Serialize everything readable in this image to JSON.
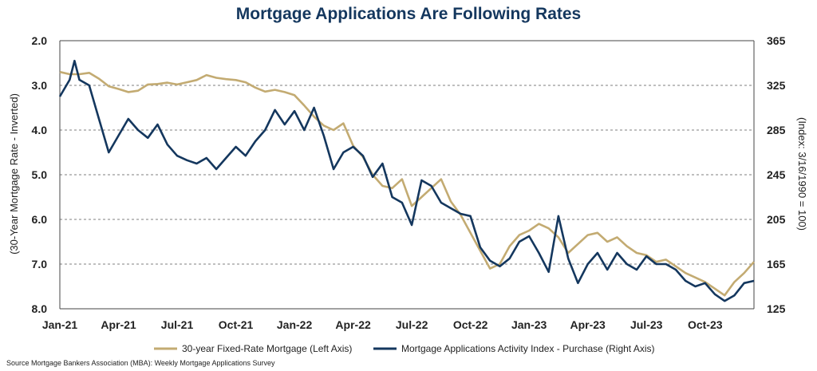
{
  "title": "Mortgage Applications Are Following Rates",
  "source": "Source Mortgage Bankers Association (MBA): Weekly Mortgage Applications Survey",
  "chart_data": {
    "type": "line",
    "title": "Mortgage Applications Are Following Rates",
    "x_tick_labels": [
      "Jan-21",
      "Apr-21",
      "Jul-21",
      "Oct-21",
      "Jan-22",
      "Apr-22",
      "Jul-22",
      "Oct-22",
      "Jan-23",
      "Apr-23",
      "Jul-23",
      "Oct-23"
    ],
    "x_tick_months": [
      0,
      3,
      6,
      9,
      12,
      15,
      18,
      21,
      24,
      27,
      30,
      33
    ],
    "x_range_months": [
      0,
      35.5
    ],
    "left_axis": {
      "label": "(30-Year Mortgage Rate - Inverted)",
      "range": [
        2.0,
        8.0
      ],
      "inverted": true,
      "ticks": [
        "2.0",
        "3.0",
        "4.0",
        "5.0",
        "6.0",
        "7.0",
        "8.0"
      ]
    },
    "right_axis": {
      "label": "(Index: 3/16/1990 = 100)",
      "range": [
        125,
        365
      ],
      "ticks": [
        "125",
        "165",
        "205",
        "245",
        "285",
        "325",
        "365"
      ]
    },
    "grid": "horizontal dashed",
    "legend_position": "bottom",
    "series": [
      {
        "name": "30-year Fixed-Rate Mortgage (Left Axis)",
        "axis": "left",
        "color": "#c3ab72",
        "points": [
          [
            0,
            2.7
          ],
          [
            0.5,
            2.75
          ],
          [
            1,
            2.75
          ],
          [
            1.5,
            2.72
          ],
          [
            2,
            2.85
          ],
          [
            2.5,
            3.02
          ],
          [
            3,
            3.08
          ],
          [
            3.5,
            3.15
          ],
          [
            4,
            3.12
          ],
          [
            4.5,
            2.98
          ],
          [
            5,
            2.97
          ],
          [
            5.5,
            2.94
          ],
          [
            6,
            2.98
          ],
          [
            6.5,
            2.93
          ],
          [
            7,
            2.88
          ],
          [
            7.5,
            2.77
          ],
          [
            8,
            2.83
          ],
          [
            8.5,
            2.86
          ],
          [
            9,
            2.88
          ],
          [
            9.5,
            2.93
          ],
          [
            10,
            3.05
          ],
          [
            10.5,
            3.14
          ],
          [
            11,
            3.1
          ],
          [
            11.5,
            3.15
          ],
          [
            12,
            3.22
          ],
          [
            12.5,
            3.45
          ],
          [
            13,
            3.7
          ],
          [
            13.5,
            3.9
          ],
          [
            14,
            4.0
          ],
          [
            14.5,
            3.85
          ],
          [
            15,
            4.35
          ],
          [
            15.5,
            4.6
          ],
          [
            16,
            5.0
          ],
          [
            16.5,
            5.25
          ],
          [
            17,
            5.3
          ],
          [
            17.5,
            5.1
          ],
          [
            18,
            5.7
          ],
          [
            18.5,
            5.5
          ],
          [
            19,
            5.3
          ],
          [
            19.5,
            5.1
          ],
          [
            20,
            5.6
          ],
          [
            20.5,
            5.9
          ],
          [
            21,
            6.3
          ],
          [
            21.5,
            6.7
          ],
          [
            22,
            7.1
          ],
          [
            22.5,
            7.0
          ],
          [
            23,
            6.6
          ],
          [
            23.5,
            6.35
          ],
          [
            24,
            6.25
          ],
          [
            24.5,
            6.1
          ],
          [
            25,
            6.2
          ],
          [
            25.5,
            6.4
          ],
          [
            26,
            6.75
          ],
          [
            26.5,
            6.55
          ],
          [
            27,
            6.35
          ],
          [
            27.5,
            6.3
          ],
          [
            28,
            6.5
          ],
          [
            28.5,
            6.4
          ],
          [
            29,
            6.6
          ],
          [
            29.5,
            6.75
          ],
          [
            30,
            6.8
          ],
          [
            30.5,
            6.95
          ],
          [
            31,
            6.9
          ],
          [
            31.5,
            7.05
          ],
          [
            32,
            7.2
          ],
          [
            32.5,
            7.3
          ],
          [
            33,
            7.4
          ],
          [
            33.5,
            7.55
          ],
          [
            34,
            7.7
          ],
          [
            34.5,
            7.4
          ],
          [
            35,
            7.2
          ],
          [
            35.5,
            6.95
          ]
        ]
      },
      {
        "name": "Mortgage Applications Activity Index - Purchase (Right Axis)",
        "axis": "right",
        "color": "#14375e",
        "points": [
          [
            0,
            315
          ],
          [
            0.5,
            330
          ],
          [
            0.75,
            347
          ],
          [
            1,
            330
          ],
          [
            1.5,
            325
          ],
          [
            2,
            295
          ],
          [
            2.5,
            265
          ],
          [
            3,
            280
          ],
          [
            3.5,
            295
          ],
          [
            4,
            285
          ],
          [
            4.5,
            278
          ],
          [
            5,
            290
          ],
          [
            5.5,
            272
          ],
          [
            6,
            262
          ],
          [
            6.5,
            258
          ],
          [
            7,
            255
          ],
          [
            7.5,
            260
          ],
          [
            8,
            250
          ],
          [
            8.5,
            260
          ],
          [
            9,
            270
          ],
          [
            9.5,
            262
          ],
          [
            10,
            275
          ],
          [
            10.5,
            285
          ],
          [
            11,
            303
          ],
          [
            11.5,
            290
          ],
          [
            12,
            302
          ],
          [
            12.5,
            285
          ],
          [
            13,
            305
          ],
          [
            13.5,
            280
          ],
          [
            14,
            250
          ],
          [
            14.5,
            265
          ],
          [
            15,
            270
          ],
          [
            15.5,
            262
          ],
          [
            16,
            243
          ],
          [
            16.5,
            255
          ],
          [
            17,
            225
          ],
          [
            17.5,
            220
          ],
          [
            18,
            200
          ],
          [
            18.5,
            240
          ],
          [
            19,
            235
          ],
          [
            19.5,
            220
          ],
          [
            20,
            215
          ],
          [
            20.5,
            210
          ],
          [
            21,
            208
          ],
          [
            21.5,
            180
          ],
          [
            22,
            168
          ],
          [
            22.5,
            163
          ],
          [
            23,
            170
          ],
          [
            23.5,
            185
          ],
          [
            24,
            190
          ],
          [
            24.5,
            175
          ],
          [
            25,
            158
          ],
          [
            25.5,
            208
          ],
          [
            26,
            170
          ],
          [
            26.5,
            148
          ],
          [
            27,
            165
          ],
          [
            27.5,
            175
          ],
          [
            28,
            160
          ],
          [
            28.5,
            175
          ],
          [
            29,
            165
          ],
          [
            29.5,
            160
          ],
          [
            30,
            172
          ],
          [
            30.5,
            165
          ],
          [
            31,
            165
          ],
          [
            31.5,
            160
          ],
          [
            32,
            150
          ],
          [
            32.5,
            145
          ],
          [
            33,
            148
          ],
          [
            33.5,
            138
          ],
          [
            34,
            132
          ],
          [
            34.5,
            137
          ],
          [
            35,
            148
          ],
          [
            35.5,
            150
          ]
        ]
      }
    ]
  }
}
